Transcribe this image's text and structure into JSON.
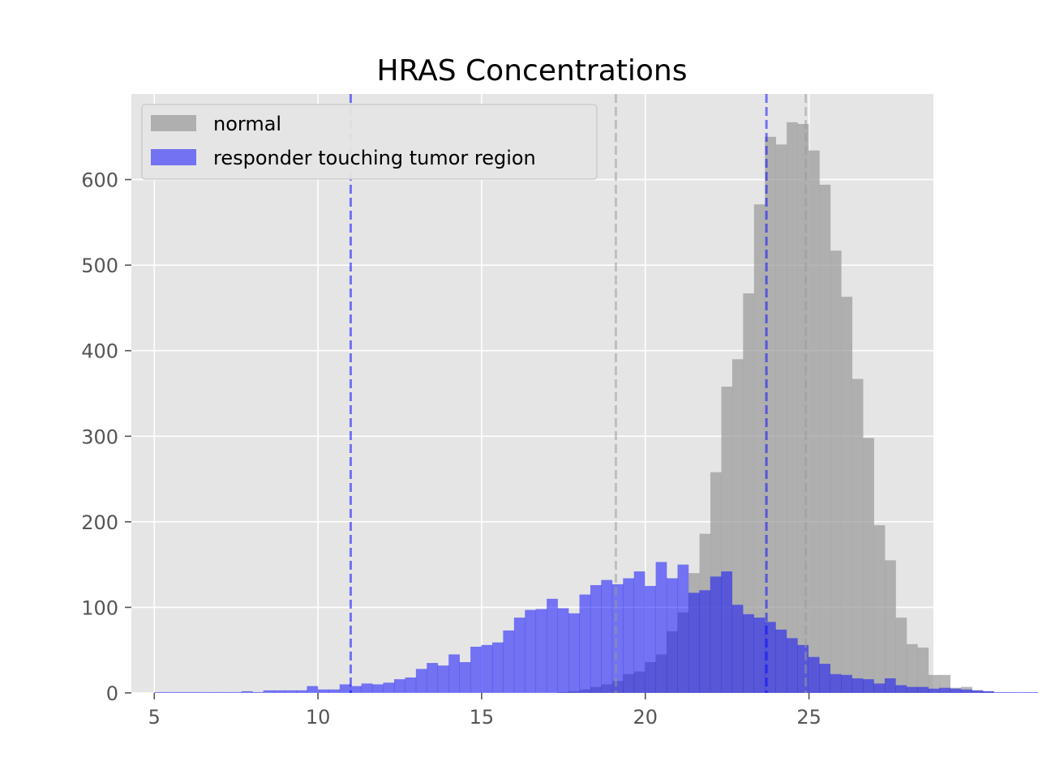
{
  "chart_data": {
    "type": "bar",
    "subtype": "histogram",
    "title": "HRAS Concentrations",
    "xlabel": "",
    "ylabel": "",
    "xlim": [
      4.3,
      28.8
    ],
    "ylim": [
      0,
      700
    ],
    "x_ticks": [
      5,
      10,
      15,
      20,
      25
    ],
    "y_ticks": [
      0,
      100,
      200,
      300,
      400,
      500,
      600
    ],
    "grid": true,
    "legend_position": "top-left",
    "background": "#e5e5e5",
    "bin_width": 0.333,
    "series": [
      {
        "name": "normal",
        "color": "#999999",
        "opacity": 0.7,
        "bin_start": 10.0,
        "counts": [
          0,
          0,
          0,
          0,
          0,
          0,
          0,
          0,
          0,
          0,
          0,
          0,
          0,
          0,
          0,
          0,
          0,
          0,
          0,
          0,
          0,
          0,
          1,
          2,
          4,
          7,
          10,
          14,
          22,
          25,
          36,
          45,
          72,
          94,
          140,
          186,
          258,
          358,
          390,
          467,
          571,
          650,
          641,
          667,
          665,
          634,
          594,
          517,
          463,
          367,
          298,
          196,
          155,
          88,
          57,
          53,
          21,
          21,
          6,
          7,
          3,
          2
        ]
      },
      {
        "name": "responder touching tumor region",
        "color": "#0000ff",
        "opacity": 0.5,
        "bin_start": 5.0,
        "counts": [
          1,
          1,
          1,
          1,
          1,
          1,
          1,
          1,
          2,
          1,
          3,
          3,
          3,
          3,
          8,
          4,
          4,
          10,
          8,
          11,
          10,
          12,
          16,
          18,
          28,
          35,
          32,
          45,
          36,
          54,
          56,
          59,
          73,
          88,
          97,
          98,
          110,
          99,
          93,
          115,
          126,
          132,
          127,
          134,
          142,
          125,
          153,
          134,
          150,
          117,
          120,
          136,
          142,
          103,
          92,
          88,
          83,
          74,
          64,
          56,
          42,
          34,
          22,
          21,
          17,
          16,
          11,
          17,
          9,
          7,
          7,
          5,
          6,
          5,
          4,
          3,
          2,
          1,
          1,
          1,
          1,
          1,
          1,
          1,
          1,
          1,
          1,
          1,
          1
        ]
      }
    ],
    "vlines": [
      {
        "x": 11.0,
        "color": "#0000ff",
        "style": "dashed"
      },
      {
        "x": 23.7,
        "color": "#0000ff",
        "style": "dashed"
      },
      {
        "x": 19.1,
        "color": "#999999",
        "style": "dashed"
      },
      {
        "x": 24.9,
        "color": "#999999",
        "style": "dashed"
      }
    ]
  }
}
